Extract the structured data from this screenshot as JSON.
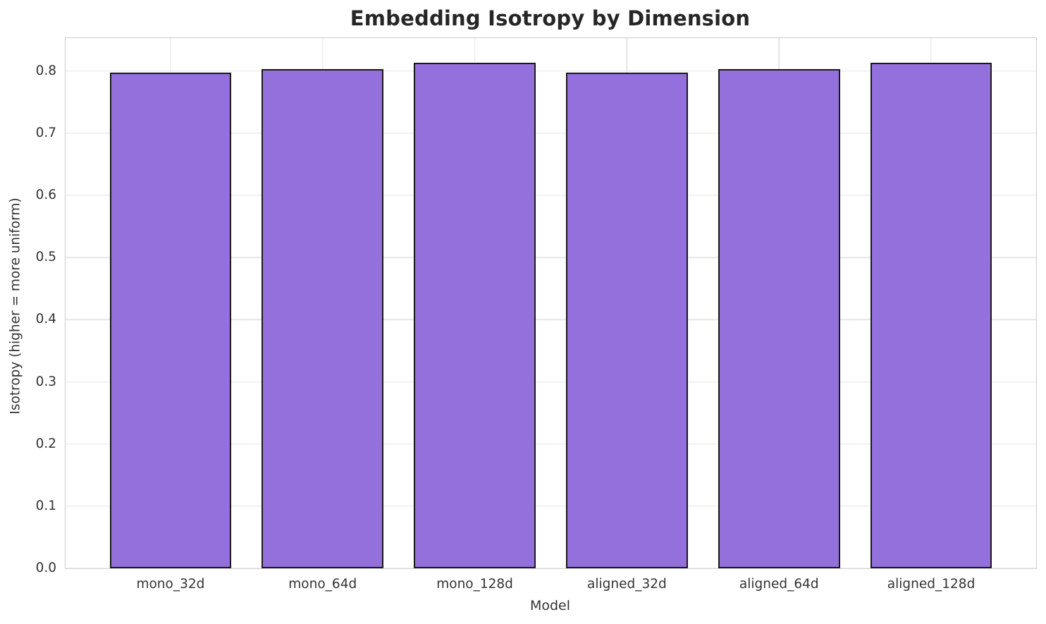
{
  "chart_data": {
    "type": "bar",
    "title": "Embedding Isotropy by Dimension",
    "xlabel": "Model",
    "ylabel": "Isotropy (higher = more uniform)",
    "categories": [
      "mono_32d",
      "mono_64d",
      "mono_128d",
      "aligned_32d",
      "aligned_64d",
      "aligned_128d"
    ],
    "values": [
      0.798,
      0.803,
      0.813,
      0.798,
      0.803,
      0.813
    ],
    "yticks": [
      "0.0",
      "0.1",
      "0.2",
      "0.3",
      "0.4",
      "0.5",
      "0.6",
      "0.7",
      "0.8"
    ],
    "ytick_values": [
      0.0,
      0.1,
      0.2,
      0.3,
      0.4,
      0.5,
      0.6,
      0.7,
      0.8
    ],
    "ylim": [
      0,
      0.853
    ],
    "xlim": [
      -0.69,
      5.69
    ],
    "bar_width_units": 0.8,
    "grid": true,
    "legend_position": "none",
    "colors": {
      "bar_fill": "#9370db",
      "bar_edge": "#1a1a1a",
      "grid_line": "#e5e5e5",
      "spine": "#cccccc",
      "title_text": "#262626",
      "tick_text": "#333333",
      "axis_label_text": "#333333",
      "background": "#ffffff"
    }
  }
}
